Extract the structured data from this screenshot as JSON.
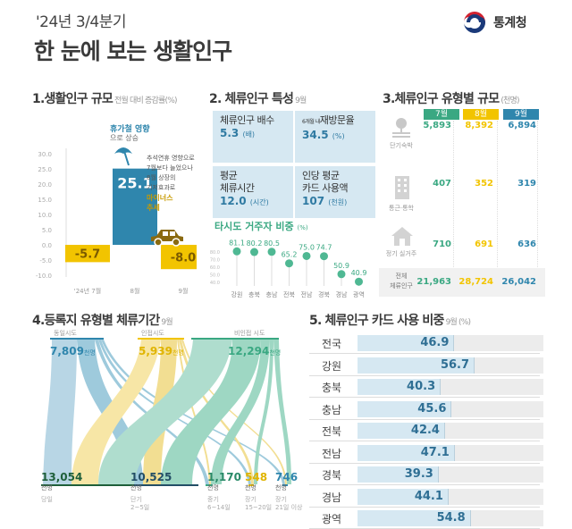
{
  "header": {
    "subtitle": "'24년 3/4분기",
    "title": "한 눈에 보는 생활인구",
    "org": "통계청",
    "org_logo_icon": "taegeuk-logo-icon"
  },
  "colors": {
    "teal_blue": "#2f86ad",
    "yellow": "#f2c400",
    "green": "#3aa882",
    "light_blue": "#d6e8f2",
    "brown": "#8a6a10"
  },
  "section1": {
    "title": "1.생활인구 규모",
    "subtitle": "전월 대비 증감률(%)",
    "annotation_top_line1": "휴가철 영향",
    "annotation_top_line2": "으로 상승",
    "annotation_right": [
      "추석연휴 영향으로",
      "7월보다 늘었으나",
      "8월 상장의",
      "기저효과로"
    ],
    "annotation_right_highlight": "마이너스",
    "annotation_right_end": "추세",
    "icons": [
      "parasol-icon",
      "car-icon"
    ]
  },
  "section2": {
    "title": "2. 체류인구 특성",
    "month": "9월",
    "cards": [
      {
        "label": "체류인구 배수",
        "prefix": "",
        "value": "5.3",
        "unit": "(배)"
      },
      {
        "label": "재방문율",
        "prefix": "6개월 내",
        "value": "34.5",
        "unit": "(%)"
      },
      {
        "label": "평균 체류시간",
        "label_lines": [
          "평균",
          "체류시간"
        ],
        "prefix": "",
        "value": "12.0",
        "unit": "(시간)"
      },
      {
        "label": "인당 평균 카드 사용액",
        "label_lines": [
          "인당 평균",
          "카드 사용액"
        ],
        "prefix": "",
        "value": "107",
        "unit": "(천원)"
      }
    ],
    "lollipop_title": "타시도 거주자 비중",
    "lollipop_unit": "(%)"
  },
  "section3": {
    "title": "3.체류인구 유형별 규모",
    "unit": "(천명)",
    "months": [
      "7월",
      "8월",
      "9월"
    ],
    "rows": [
      {
        "label": "단기숙박",
        "icon": "resort-icon",
        "values": [
          "5,893",
          "8,392",
          "6,894"
        ]
      },
      {
        "label": "통근·통학",
        "icon": "building-icon",
        "values": [
          "407",
          "352",
          "319"
        ]
      },
      {
        "label": "정기 실거주",
        "icon": "house-icon",
        "values": [
          "710",
          "691",
          "636"
        ]
      }
    ],
    "total": {
      "label_lines": [
        "전체",
        "체류인구"
      ],
      "values": [
        "21,963",
        "28,724",
        "26,042"
      ]
    }
  },
  "section4": {
    "title": "4.등록지 유형별 체류기간",
    "month": "9월",
    "sources": [
      {
        "name": "동일시도",
        "value": "7,809",
        "unit": "천명"
      },
      {
        "name": "인접시도",
        "value": "5,939",
        "unit": "천명"
      },
      {
        "name": "비인접 시도",
        "value": "12,294",
        "unit": "천명"
      }
    ],
    "targets": [
      {
        "value": "13,054",
        "unit": "천명",
        "cat": [
          "당일"
        ]
      },
      {
        "value": "10,525",
        "unit": "천명",
        "cat": [
          "단기",
          "2~5일"
        ]
      },
      {
        "value": "1,170",
        "unit": "천명",
        "cat": [
          "중기",
          "6~14일"
        ]
      },
      {
        "value": "548",
        "unit": "천명",
        "cat": [
          "장기",
          "15~20일"
        ]
      },
      {
        "value": "746",
        "unit": "천명",
        "cat": [
          "장기",
          "21일 이상"
        ]
      }
    ]
  },
  "section5": {
    "title": "5. 체류인구 카드 사용 비중",
    "sub": "9월 (%)"
  },
  "chart_data": [
    {
      "type": "bar",
      "title": "1.생활인구 규모 전월 대비 증감률(%)",
      "categories": [
        "'24년 7월",
        "8월",
        "9월"
      ],
      "values": [
        -5.7,
        25.1,
        -8.0
      ],
      "ylim": [
        -10.0,
        30.0
      ],
      "yticks": [
        "30.0",
        "25.0",
        "20.0",
        "15.0",
        "10.0",
        "5.0",
        "0.0",
        "-5.0",
        "-10.0"
      ],
      "xlabel": "",
      "ylabel": "",
      "bar_colors": [
        "#f2c400",
        "#2f86ad",
        "#f2c400"
      ]
    },
    {
      "type": "scatter",
      "title": "타시도 거주자 비중 (%)",
      "categories": [
        "강원",
        "충북",
        "충남",
        "전북",
        "전남",
        "경북",
        "경남",
        "광역"
      ],
      "values": [
        81.1,
        80.2,
        80.5,
        65.2,
        75.0,
        74.7,
        50.9,
        40.9
      ],
      "value_labels": [
        "81.1",
        "80.2",
        "80.5",
        "65.2",
        "75.0",
        "74.7",
        "50.9",
        "40.9"
      ],
      "yticks": [
        "80.0",
        "70.0",
        "60.0",
        "50.0",
        "40.0"
      ],
      "ylim": [
        40,
        85
      ]
    },
    {
      "type": "bar",
      "title": "5. 체류인구 카드 사용 비중 9월 (%)",
      "orientation": "horizontal",
      "categories": [
        "전국",
        "강원",
        "충북",
        "충남",
        "전북",
        "전남",
        "경북",
        "경남",
        "광역"
      ],
      "values": [
        46.9,
        56.7,
        40.3,
        45.6,
        42.4,
        47.1,
        39.3,
        44.1,
        54.8
      ],
      "value_labels": [
        "46.9",
        "56.7",
        "40.3",
        "45.6",
        "42.4",
        "47.1",
        "39.3",
        "44.1",
        "54.8"
      ],
      "xlim": [
        0,
        100
      ]
    }
  ]
}
